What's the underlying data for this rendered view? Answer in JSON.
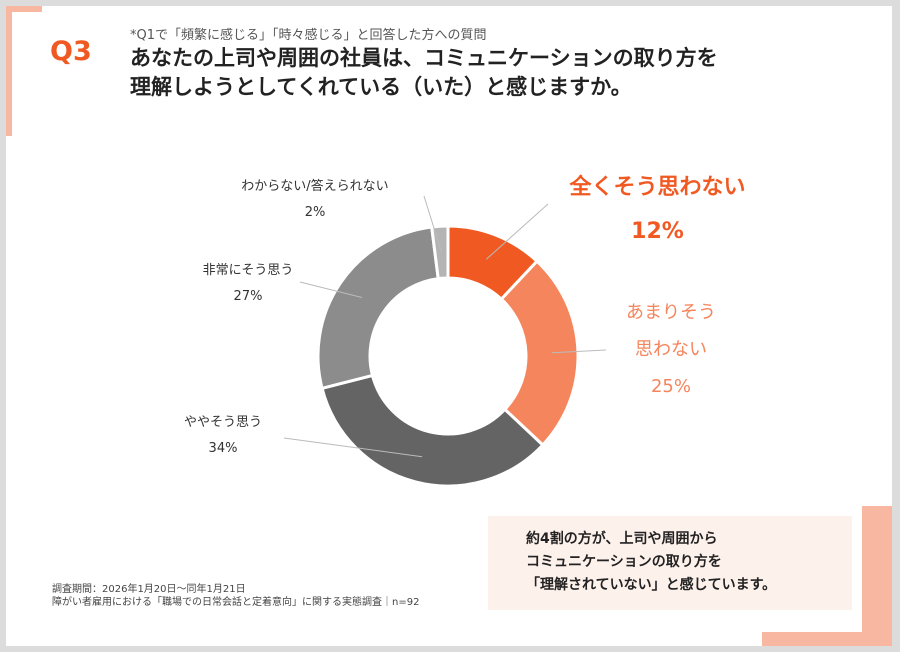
{
  "header": {
    "q_label": "Q3",
    "subtitle": "*Q1で「頻繁に感じる」「時々感じる」と回答した方への質問",
    "title_line1": "あなたの上司や周囲の社員は、コミュニケーションの取り方を",
    "title_line2": "理解しようとしてくれている（いた）と感じますか。"
  },
  "chart_data": {
    "type": "pie",
    "donut": true,
    "categories": [
      "全くそう思わない",
      "あまりそう思わない",
      "ややそう思う",
      "非常にそう思う",
      "わからない/答えられない"
    ],
    "values": [
      12,
      25,
      34,
      27,
      2
    ],
    "unit": "%",
    "colors": [
      "#f05a22",
      "#f5855c",
      "#646464",
      "#8c8c8c",
      "#b4b4b4"
    ],
    "labels": [
      {
        "lines": [
          "全くそう思わない"
        ],
        "value": "12%"
      },
      {
        "lines": [
          "あまりそう",
          "思わない"
        ],
        "value": "25%"
      },
      {
        "lines": [
          "ややそう思う"
        ],
        "value": "34%"
      },
      {
        "lines": [
          "非常にそう思う"
        ],
        "value": "27%"
      },
      {
        "lines": [
          "わからない/答えられない"
        ],
        "value": "2%"
      }
    ]
  },
  "callout": {
    "line1": "約4割の方が、上司や周囲から",
    "line2": "コミュニケーションの取り方を",
    "line3": "「理解されていない」と感じています。"
  },
  "footnote": {
    "line1": "調査期間：2026年1月20日〜同年1月21日",
    "line2": "障がい者雇用における「職場での日常会話と定着意向」に関する実態調査｜n=92"
  }
}
